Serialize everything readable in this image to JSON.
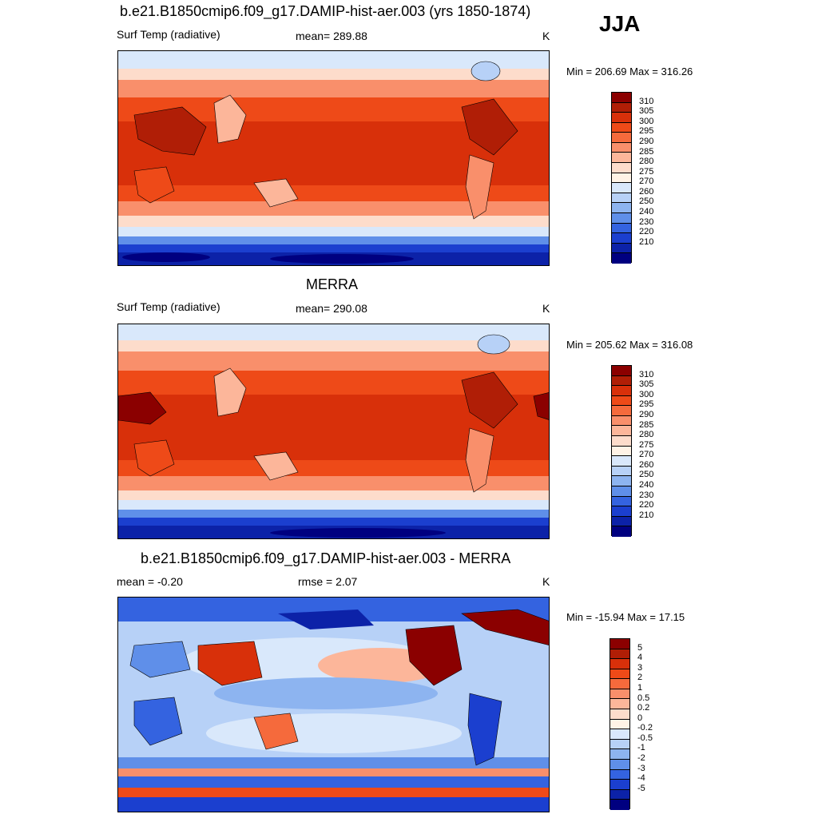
{
  "season": "JJA",
  "panels": [
    {
      "title": "b.e21.B1850cmip6.f09_g17.DAMIP-hist-aer.003 (yrs 1850-1874)",
      "left_label": "Surf Temp (radiative)",
      "center_label": "mean= 289.88",
      "units": "K",
      "minmax": "Min = 206.69 Max = 316.26",
      "colorbar": {
        "labels": [
          "310",
          "305",
          "300",
          "295",
          "290",
          "285",
          "280",
          "275",
          "270",
          "260",
          "250",
          "240",
          "230",
          "220",
          "210"
        ],
        "colors": [
          "#8b0000",
          "#b01e06",
          "#d8300a",
          "#ee4a18",
          "#f56a3c",
          "#f98f6b",
          "#fcb69a",
          "#fddccb",
          "#fff3e6",
          "#d9e8fb",
          "#b7d1f7",
          "#8db4f0",
          "#5f8fe9",
          "#3463e0",
          "#1b3fcf",
          "#0c22a8",
          "#000080"
        ]
      },
      "map_style": "absolute"
    },
    {
      "title": "MERRA",
      "left_label": "Surf Temp (radiative)",
      "center_label": "mean= 290.08",
      "units": "K",
      "minmax": "Min = 205.62 Max = 316.08",
      "colorbar": {
        "labels": [
          "310",
          "305",
          "300",
          "295",
          "290",
          "285",
          "280",
          "275",
          "270",
          "260",
          "250",
          "240",
          "230",
          "220",
          "210"
        ],
        "colors": [
          "#8b0000",
          "#b01e06",
          "#d8300a",
          "#ee4a18",
          "#f56a3c",
          "#f98f6b",
          "#fcb69a",
          "#fddccb",
          "#fff3e6",
          "#d9e8fb",
          "#b7d1f7",
          "#8db4f0",
          "#5f8fe9",
          "#3463e0",
          "#1b3fcf",
          "#0c22a8",
          "#000080"
        ]
      },
      "map_style": "absolute"
    },
    {
      "title": "b.e21.B1850cmip6.f09_g17.DAMIP-hist-aer.003 - MERRA",
      "left_label": "mean =  -0.20",
      "center_label": "rmse =   2.07",
      "units": "K",
      "minmax": "Min = -15.94 Max =  17.15",
      "colorbar": {
        "labels": [
          "5",
          "4",
          "3",
          "2",
          "1",
          "0.5",
          "0.2",
          "0",
          "-0.2",
          "-0.5",
          "-1",
          "-2",
          "-3",
          "-4",
          "-5"
        ],
        "colors": [
          "#8b0000",
          "#b01e06",
          "#d8300a",
          "#ee4a18",
          "#f56a3c",
          "#f98f6b",
          "#fcb69a",
          "#fddccb",
          "#fff3e6",
          "#d9e8fb",
          "#b7d1f7",
          "#8db4f0",
          "#5f8fe9",
          "#3463e0",
          "#1b3fcf",
          "#0c22a8",
          "#000080"
        ]
      },
      "map_style": "difference"
    }
  ]
}
